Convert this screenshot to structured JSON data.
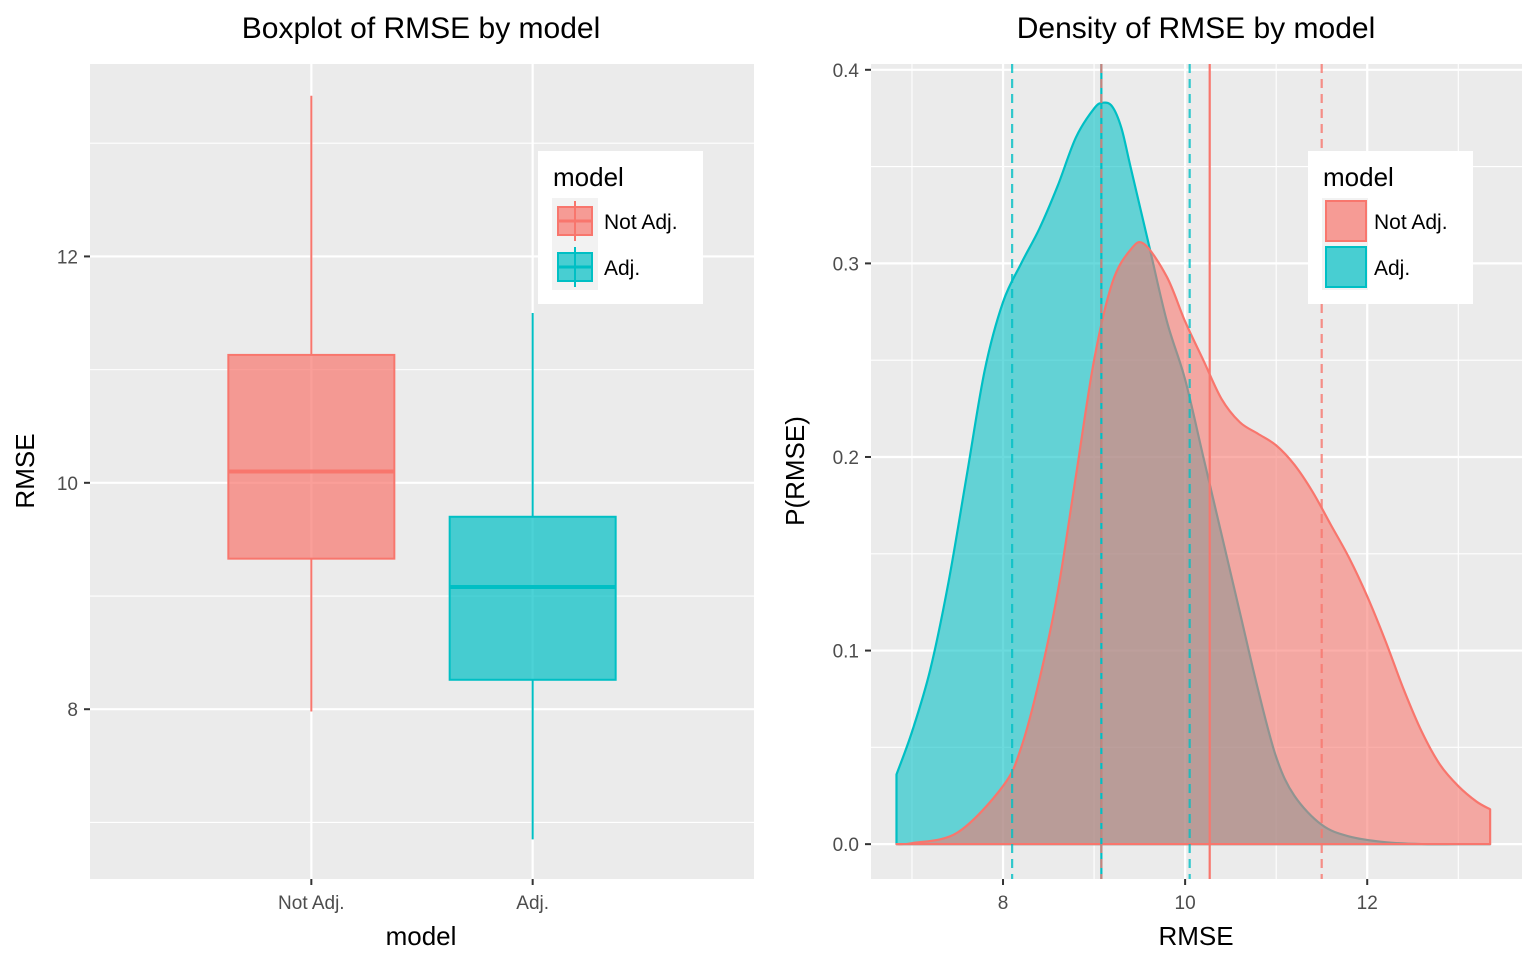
{
  "colors": {
    "not_adj": "#F8766D",
    "adj": "#00BFC4",
    "panel_bg": "#EBEBEB",
    "grid": "#FFFFFF",
    "tick_text": "#4D4D4D"
  },
  "chart_data": [
    {
      "type": "boxplot",
      "title": "Boxplot of RMSE by model",
      "xlabel": "model",
      "ylabel": "RMSE",
      "ylim": [
        6.5,
        13.7
      ],
      "y_ticks": [
        8,
        10,
        12
      ],
      "categories": [
        "Not Adj.",
        "Adj."
      ],
      "series": [
        {
          "name": "Not Adj.",
          "color": "#F8766D",
          "min": 7.98,
          "q1": 9.33,
          "median": 10.1,
          "q3": 11.13,
          "max": 13.42
        },
        {
          "name": "Adj.",
          "color": "#00BFC4",
          "min": 6.85,
          "q1": 8.26,
          "median": 9.08,
          "q3": 9.7,
          "max": 11.5
        }
      ],
      "legend": {
        "title": "model",
        "position": "top-right",
        "entries": [
          "Not Adj.",
          "Adj."
        ]
      },
      "grid": true
    },
    {
      "type": "area",
      "title": "Density of RMSE by model",
      "xlabel": "RMSE",
      "ylabel": "P(RMSE)",
      "xlim": [
        6.55,
        13.7
      ],
      "ylim": [
        -0.018,
        0.403
      ],
      "x_ticks": [
        8,
        10,
        12
      ],
      "y_ticks": [
        0.0,
        0.1,
        0.2,
        0.3,
        0.4
      ],
      "y_tick_labels": [
        "0.0",
        "0.1",
        "0.2",
        "0.3",
        "0.4"
      ],
      "series": [
        {
          "name": "Adj.",
          "color": "#00BFC4",
          "x": [
            6.83,
            7.0,
            7.2,
            7.4,
            7.6,
            7.8,
            8.0,
            8.2,
            8.4,
            8.6,
            8.8,
            9.0,
            9.1,
            9.2,
            9.3,
            9.4,
            9.6,
            9.8,
            10.0,
            10.2,
            10.4,
            10.6,
            10.8,
            11.0,
            11.2,
            11.5,
            11.8,
            12.2,
            12.6,
            13.0,
            13.35
          ],
          "y": [
            0.036,
            0.058,
            0.09,
            0.135,
            0.19,
            0.245,
            0.28,
            0.3,
            0.318,
            0.34,
            0.365,
            0.38,
            0.383,
            0.381,
            0.37,
            0.35,
            0.31,
            0.27,
            0.24,
            0.2,
            0.16,
            0.12,
            0.08,
            0.045,
            0.025,
            0.01,
            0.004,
            0.001,
            0.0,
            0.0,
            0.0
          ],
          "mean": 9.08,
          "mean_minus_sd": 8.1,
          "mean_plus_sd": 10.05
        },
        {
          "name": "Not Adj.",
          "color": "#F8766D",
          "x": [
            6.83,
            7.0,
            7.5,
            8.0,
            8.2,
            8.4,
            8.6,
            8.8,
            9.0,
            9.2,
            9.4,
            9.55,
            9.8,
            10.0,
            10.2,
            10.4,
            10.6,
            10.8,
            11.0,
            11.2,
            11.4,
            11.6,
            11.8,
            12.0,
            12.2,
            12.4,
            12.6,
            12.8,
            13.0,
            13.2,
            13.35
          ],
          "y": [
            0.0,
            0.0005,
            0.006,
            0.03,
            0.05,
            0.085,
            0.13,
            0.19,
            0.25,
            0.29,
            0.307,
            0.31,
            0.293,
            0.27,
            0.25,
            0.23,
            0.218,
            0.212,
            0.206,
            0.196,
            0.182,
            0.165,
            0.148,
            0.128,
            0.105,
            0.08,
            0.058,
            0.041,
            0.03,
            0.022,
            0.018
          ],
          "mean": 10.27,
          "mean_minus_sd": 9.08,
          "mean_plus_sd": 11.5
        }
      ],
      "legend": {
        "title": "model",
        "position": "top-right",
        "entries": [
          "Not Adj.",
          "Adj."
        ]
      },
      "grid": true
    }
  ]
}
